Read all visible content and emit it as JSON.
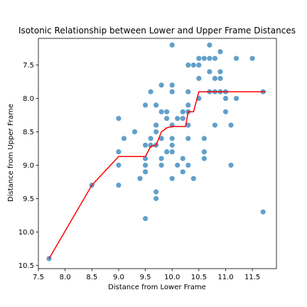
{
  "chart_data": {
    "type": "scatter",
    "title": "Isotonic Relationship between Lower and Upper Frame Distances",
    "xlabel": "Distance from Lower Frame",
    "ylabel": "Distance from Upper Frame",
    "xlim": [
      7.5,
      11.95
    ],
    "ylim": [
      10.55,
      7.1
    ],
    "y_inverted": true,
    "x_ticks": [
      "7.5",
      "8.0",
      "8.5",
      "9.0",
      "9.5",
      "10.0",
      "10.5",
      "11.0",
      "11.5"
    ],
    "y_ticks": [
      "7.5",
      "8.0",
      "8.5",
      "9.0",
      "9.5",
      "10.0",
      "10.5"
    ],
    "grid": false,
    "series": [
      {
        "kind": "scatter",
        "color": "#1f77b4",
        "points": [
          [
            7.7,
            10.4
          ],
          [
            8.5,
            9.3
          ],
          [
            9.0,
            8.3
          ],
          [
            9.0,
            8.8
          ],
          [
            9.0,
            9.0
          ],
          [
            9.0,
            9.3
          ],
          [
            9.1,
            8.6
          ],
          [
            9.3,
            8.5
          ],
          [
            9.4,
            9.2
          ],
          [
            9.5,
            8.1
          ],
          [
            9.5,
            8.7
          ],
          [
            9.5,
            8.9
          ],
          [
            9.5,
            9.0
          ],
          [
            9.5,
            9.1
          ],
          [
            9.5,
            9.8
          ],
          [
            9.6,
            7.9
          ],
          [
            9.6,
            8.6
          ],
          [
            9.6,
            8.7
          ],
          [
            9.7,
            8.1
          ],
          [
            9.7,
            8.4
          ],
          [
            9.7,
            8.5
          ],
          [
            9.7,
            8.7
          ],
          [
            9.7,
            9.4
          ],
          [
            9.7,
            9.5
          ],
          [
            9.8,
            7.8
          ],
          [
            9.8,
            8.2
          ],
          [
            9.8,
            8.6
          ],
          [
            9.8,
            8.9
          ],
          [
            9.8,
            9.0
          ],
          [
            9.9,
            8.2
          ],
          [
            9.9,
            8.3
          ],
          [
            9.9,
            8.8
          ],
          [
            10.0,
            7.2
          ],
          [
            10.0,
            7.8
          ],
          [
            10.0,
            7.9
          ],
          [
            10.0,
            8.4
          ],
          [
            10.0,
            8.6
          ],
          [
            10.0,
            8.7
          ],
          [
            10.0,
            8.8
          ],
          [
            10.0,
            9.2
          ],
          [
            10.1,
            8.3
          ],
          [
            10.1,
            9.0
          ],
          [
            10.2,
            8.2
          ],
          [
            10.2,
            8.3
          ],
          [
            10.2,
            8.9
          ],
          [
            10.2,
            9.1
          ],
          [
            10.3,
            7.5
          ],
          [
            10.3,
            7.9
          ],
          [
            10.3,
            8.1
          ],
          [
            10.3,
            8.2
          ],
          [
            10.3,
            8.4
          ],
          [
            10.3,
            8.6
          ],
          [
            10.3,
            9.0
          ],
          [
            10.4,
            7.5
          ],
          [
            10.4,
            9.2
          ],
          [
            10.5,
            7.4
          ],
          [
            10.5,
            7.5
          ],
          [
            10.5,
            7.7
          ],
          [
            10.5,
            8.0
          ],
          [
            10.6,
            7.4
          ],
          [
            10.6,
            8.6
          ],
          [
            10.6,
            8.8
          ],
          [
            10.6,
            8.9
          ],
          [
            10.7,
            7.2
          ],
          [
            10.7,
            7.4
          ],
          [
            10.7,
            7.6
          ],
          [
            10.7,
            7.9
          ],
          [
            10.8,
            7.4
          ],
          [
            10.8,
            7.7
          ],
          [
            10.8,
            7.9
          ],
          [
            10.8,
            8.4
          ],
          [
            10.9,
            7.3
          ],
          [
            10.9,
            7.6
          ],
          [
            10.9,
            7.7
          ],
          [
            10.9,
            7.9
          ],
          [
            11.0,
            7.9
          ],
          [
            11.0,
            8.0
          ],
          [
            11.0,
            8.2
          ],
          [
            11.1,
            9.0
          ],
          [
            11.1,
            8.4
          ],
          [
            11.2,
            7.4
          ],
          [
            11.2,
            8.0
          ],
          [
            11.5,
            7.4
          ],
          [
            11.7,
            7.9
          ],
          [
            11.7,
            9.7
          ]
        ]
      },
      {
        "kind": "line",
        "color": "#ff0000",
        "points": [
          [
            7.7,
            10.4
          ],
          [
            8.5,
            9.3
          ],
          [
            9.0,
            8.87
          ],
          [
            9.5,
            8.87
          ],
          [
            9.6,
            8.72
          ],
          [
            9.7,
            8.7
          ],
          [
            9.8,
            8.5
          ],
          [
            9.9,
            8.44
          ],
          [
            10.0,
            8.42
          ],
          [
            10.25,
            8.42
          ],
          [
            10.3,
            8.2
          ],
          [
            10.4,
            8.2
          ],
          [
            10.5,
            7.9
          ],
          [
            11.75,
            7.9
          ]
        ]
      }
    ]
  }
}
